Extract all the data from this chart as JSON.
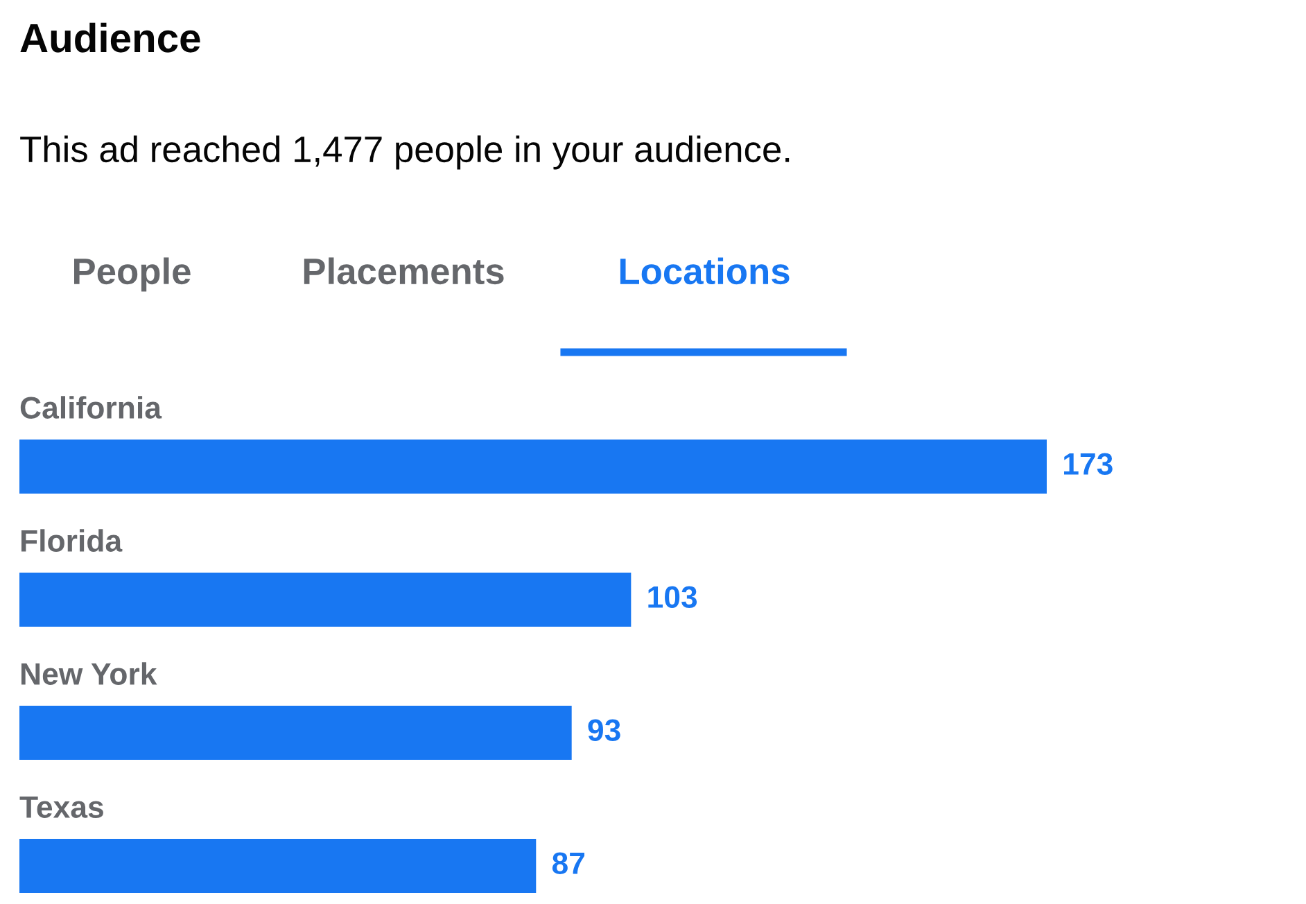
{
  "chart_data": {
    "type": "bar",
    "orientation": "horizontal",
    "title": "Audience",
    "subtitle": "This ad reached 1,477 people in your audience.",
    "annotations": [
      "People",
      "Placements",
      "Locations"
    ],
    "categories": [
      "California",
      "Florida",
      "New York",
      "Texas"
    ],
    "values": [
      173,
      103,
      93,
      87
    ],
    "color": "#1877f2",
    "data_labels": true
  }
}
